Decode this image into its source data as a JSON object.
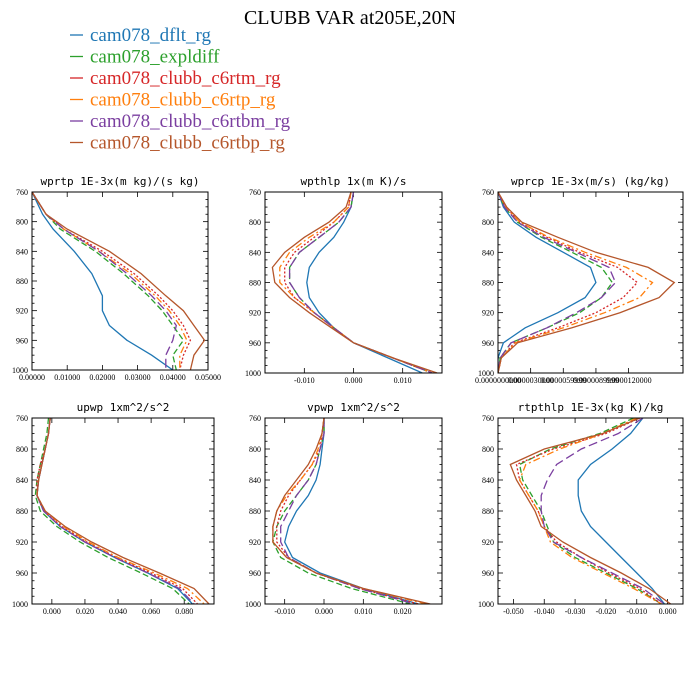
{
  "title": "CLUBB VAR at205E,20N",
  "colors": {
    "cam078_dflt_rg": "#1f77b4",
    "cam078_expldiff": "#2ca02c",
    "cam078_clubb_c6rtm_rg": "#d62728",
    "cam078_clubb_c6rtp_rg": "#ff7f0e",
    "cam078_clubb_c6rtbm_rg": "#7b3fa0",
    "cam078_clubb_c6rtbp_rg": "#b5562b"
  },
  "legend": [
    {
      "name": "cam078_dflt_rg",
      "color": "#1f77b4",
      "dash": "solid"
    },
    {
      "name": "cam078_expldiff",
      "color": "#2ca02c",
      "dash": "dash"
    },
    {
      "name": "cam078_clubb_c6rtm_rg",
      "color": "#d62728",
      "dash": "dot"
    },
    {
      "name": "cam078_clubb_c6rtp_rg",
      "color": "#ff7f0e",
      "dash": "dashdot"
    },
    {
      "name": "cam078_clubb_c6rtbm_rg",
      "color": "#7b3fa0",
      "dash": "longdash"
    },
    {
      "name": "cam078_clubb_c6rtbp_rg",
      "color": "#b5562b",
      "dash": "solid"
    }
  ],
  "chart_data": [
    {
      "type": "line",
      "title": "wprtp  1E-3x(m kg)/(s kg)",
      "y_reversed": true,
      "ylim": [
        760,
        1000
      ],
      "yticks": [
        760,
        800,
        840,
        880,
        920,
        960,
        1000
      ],
      "xlim": [
        0.0,
        0.05
      ],
      "xticks": [
        0.0,
        0.01,
        0.02,
        0.03,
        0.04,
        0.05
      ],
      "xticklabels": [
        "0.00000",
        "0.01000",
        "0.02000",
        "0.03000",
        "0.04000",
        "0.05000"
      ],
      "y": [
        760,
        790,
        810,
        840,
        870,
        900,
        920,
        940,
        960,
        980,
        1000
      ],
      "series": [
        {
          "name": "cam078_dflt_rg",
          "x": [
            0.0,
            0.003,
            0.006,
            0.012,
            0.017,
            0.02,
            0.02,
            0.022,
            0.027,
            0.034,
            0.04
          ]
        },
        {
          "name": "cam078_expldiff",
          "x": [
            0.0,
            0.004,
            0.008,
            0.018,
            0.026,
            0.033,
            0.037,
            0.04,
            0.043,
            0.04,
            0.041
          ]
        },
        {
          "name": "cam078_clubb_c6rtm_rg",
          "x": [
            0.0,
            0.004,
            0.009,
            0.02,
            0.029,
            0.036,
            0.04,
            0.043,
            0.045,
            0.043,
            0.042
          ]
        },
        {
          "name": "cam078_clubb_c6rtp_rg",
          "x": [
            0.0,
            0.004,
            0.009,
            0.019,
            0.028,
            0.035,
            0.039,
            0.042,
            0.044,
            0.042,
            0.042
          ]
        },
        {
          "name": "cam078_clubb_c6rtbm_rg",
          "x": [
            0.0,
            0.004,
            0.009,
            0.019,
            0.027,
            0.034,
            0.038,
            0.041,
            0.04,
            0.038,
            0.038
          ]
        },
        {
          "name": "cam078_clubb_c6rtbp_rg",
          "x": [
            0.0,
            0.004,
            0.01,
            0.022,
            0.031,
            0.038,
            0.043,
            0.046,
            0.049,
            0.046,
            0.045
          ]
        }
      ]
    },
    {
      "type": "line",
      "title": "wpthlp  1x(m K)/s",
      "y_reversed": true,
      "ylim": [
        760,
        1000
      ],
      "yticks": [
        760,
        800,
        840,
        880,
        920,
        960,
        1000
      ],
      "xlim": [
        -0.018,
        0.018
      ],
      "xticks": [
        -0.01,
        0.0,
        0.01
      ],
      "xticklabels": [
        "-0.010",
        "0.000",
        "0.010"
      ],
      "y": [
        760,
        780,
        800,
        820,
        840,
        860,
        880,
        900,
        920,
        940,
        960,
        980,
        1000
      ],
      "series": [
        {
          "name": "cam078_dflt_rg",
          "x": [
            0.0,
            -0.0005,
            -0.002,
            -0.004,
            -0.007,
            -0.009,
            -0.0095,
            -0.009,
            -0.007,
            -0.004,
            0.0,
            0.007,
            0.014
          ]
        },
        {
          "name": "cam078_expldiff",
          "x": [
            0.0,
            -0.0005,
            -0.003,
            -0.007,
            -0.011,
            -0.013,
            -0.013,
            -0.011,
            -0.008,
            -0.004,
            0.0,
            0.008,
            0.016
          ]
        },
        {
          "name": "cam078_clubb_c6rtm_rg",
          "x": [
            -0.0005,
            -0.001,
            -0.004,
            -0.008,
            -0.012,
            -0.014,
            -0.014,
            -0.012,
            -0.008,
            -0.004,
            0.0,
            0.008,
            0.016
          ]
        },
        {
          "name": "cam078_clubb_c6rtp_rg",
          "x": [
            -0.0005,
            -0.001,
            -0.004,
            -0.009,
            -0.013,
            -0.015,
            -0.015,
            -0.012,
            -0.008,
            -0.004,
            0.0,
            0.008,
            0.016
          ]
        },
        {
          "name": "cam078_clubb_c6rtbm_rg",
          "x": [
            0.0,
            -0.0005,
            -0.003,
            -0.007,
            -0.011,
            -0.013,
            -0.013,
            -0.011,
            -0.008,
            -0.004,
            0.0,
            0.008,
            0.016
          ]
        },
        {
          "name": "cam078_clubb_c6rtbp_rg",
          "x": [
            -0.0005,
            -0.0015,
            -0.005,
            -0.01,
            -0.014,
            -0.0165,
            -0.016,
            -0.013,
            -0.009,
            -0.0045,
            0.0,
            0.008,
            0.017
          ]
        }
      ]
    },
    {
      "type": "line",
      "title": "wprcp  1E-3x(m/s) (kg/kg)",
      "y_reversed": true,
      "ylim": [
        760,
        1000
      ],
      "yticks": [
        760,
        800,
        840,
        880,
        920,
        960,
        1000
      ],
      "xlim": [
        0.0,
        1.7e-05
      ],
      "xticks": [
        0.0,
        3e-06,
        6e-06,
        9e-06,
        1.2e-05
      ],
      "xticklabels": [
        "0.0000000000",
        "0.0000030000",
        "0.0000059999",
        "0.0000089999",
        "0.0000120000"
      ],
      "y": [
        760,
        780,
        800,
        820,
        840,
        860,
        880,
        900,
        920,
        940,
        960,
        980,
        1000
      ],
      "series": [
        {
          "name": "cam078_dflt_rg",
          "x": [
            0.0,
            5e-07,
            1.5e-06,
            3.5e-06,
            6e-06,
            8.5e-06,
            9e-06,
            8e-06,
            5.5e-06,
            2.5e-06,
            5e-07,
            0.0,
            0.0
          ]
        },
        {
          "name": "cam078_expldiff",
          "x": [
            0.0,
            6e-07,
            1.8e-06,
            4e-06,
            6.8e-06,
            9.5e-06,
            1.05e-05,
            9.5e-06,
            7.5e-06,
            4.5e-06,
            1.2e-06,
            2e-07,
            0.0
          ]
        },
        {
          "name": "cam078_clubb_c6rtm_rg",
          "x": [
            0.0,
            7e-07,
            2e-06,
            4.5e-06,
            7.5e-06,
            1.1e-05,
            1.28e-05,
            1.15e-05,
            9e-06,
            5.5e-06,
            1.5e-06,
            3e-07,
            0.0
          ]
        },
        {
          "name": "cam078_clubb_c6rtp_rg",
          "x": [
            0.0,
            7e-07,
            2e-06,
            4.7e-06,
            8e-06,
            1.18e-05,
            1.42e-05,
            1.3e-05,
            9.8e-06,
            6e-06,
            1.6e-06,
            3e-07,
            0.0
          ]
        },
        {
          "name": "cam078_clubb_c6rtbm_rg",
          "x": [
            0.0,
            6e-07,
            1.8e-06,
            4.2e-06,
            7.2e-06,
            1.02e-05,
            1.08e-05,
            9.5e-06,
            7.2e-06,
            4.5e-06,
            1.2e-06,
            2e-07,
            0.0
          ]
        },
        {
          "name": "cam078_clubb_c6rtbp_rg",
          "x": [
            0.0,
            8e-07,
            2.2e-06,
            5.5e-06,
            9e-06,
            1.38e-05,
            1.62e-05,
            1.48e-05,
            1.12e-05,
            6.8e-06,
            1.8e-06,
            3e-07,
            0.0
          ]
        }
      ]
    },
    {
      "type": "line",
      "title": "upwp  1xm^2/s^2",
      "y_reversed": true,
      "ylim": [
        760,
        1000
      ],
      "yticks": [
        760,
        800,
        840,
        880,
        920,
        960,
        1000
      ],
      "xlim": [
        -0.012,
        0.098
      ],
      "xticks": [
        0.0,
        0.02,
        0.04,
        0.06,
        0.08
      ],
      "xticklabels": [
        "0.000",
        "0.020",
        "0.040",
        "0.060",
        "0.080"
      ],
      "y": [
        760,
        780,
        800,
        820,
        840,
        860,
        880,
        900,
        920,
        940,
        960,
        980,
        1000
      ],
      "series": [
        {
          "name": "cam078_dflt_rg",
          "x": [
            -0.001,
            -0.002,
            -0.004,
            -0.006,
            -0.008,
            -0.009,
            -0.005,
            0.005,
            0.02,
            0.038,
            0.058,
            0.076,
            0.085
          ]
        },
        {
          "name": "cam078_expldiff",
          "x": [
            -0.002,
            -0.003,
            -0.005,
            -0.007,
            -0.009,
            -0.01,
            -0.007,
            0.003,
            0.017,
            0.034,
            0.054,
            0.073,
            0.083
          ]
        },
        {
          "name": "cam078_clubb_c6rtm_rg",
          "x": [
            -0.001,
            -0.002,
            -0.004,
            -0.007,
            -0.009,
            -0.009,
            -0.005,
            0.006,
            0.021,
            0.039,
            0.06,
            0.079,
            0.088
          ]
        },
        {
          "name": "cam078_clubb_c6rtp_rg",
          "x": [
            -0.001,
            -0.002,
            -0.004,
            -0.006,
            -0.008,
            -0.009,
            -0.004,
            0.007,
            0.022,
            0.04,
            0.062,
            0.082,
            0.092
          ]
        },
        {
          "name": "cam078_clubb_c6rtbm_rg",
          "x": [
            -0.001,
            -0.002,
            -0.004,
            -0.006,
            -0.008,
            -0.009,
            -0.005,
            0.005,
            0.02,
            0.038,
            0.058,
            0.077,
            0.086
          ]
        },
        {
          "name": "cam078_clubb_c6rtbp_rg",
          "x": [
            -0.001,
            -0.002,
            -0.004,
            -0.006,
            -0.008,
            -0.009,
            -0.004,
            0.008,
            0.024,
            0.043,
            0.065,
            0.086,
            0.095
          ]
        }
      ]
    },
    {
      "type": "line",
      "title": "vpwp  1xm^2/s^2",
      "y_reversed": true,
      "ylim": [
        760,
        1000
      ],
      "yticks": [
        760,
        800,
        840,
        880,
        920,
        960,
        1000
      ],
      "xlim": [
        -0.015,
        0.03
      ],
      "xticks": [
        -0.01,
        0.0,
        0.01,
        0.02
      ],
      "xticklabels": [
        "-0.010",
        "0.000",
        "0.010",
        "0.020"
      ],
      "y": [
        760,
        780,
        800,
        820,
        840,
        860,
        880,
        900,
        920,
        940,
        960,
        980,
        1000
      ],
      "series": [
        {
          "name": "cam078_dflt_rg",
          "x": [
            0.0,
            0.0,
            -0.0005,
            -0.001,
            -0.002,
            -0.004,
            -0.007,
            -0.009,
            -0.01,
            -0.008,
            -0.001,
            0.01,
            0.024
          ]
        },
        {
          "name": "cam078_expldiff",
          "x": [
            0.0,
            0.0,
            -0.001,
            -0.002,
            -0.004,
            -0.007,
            -0.01,
            -0.012,
            -0.013,
            -0.011,
            -0.004,
            0.007,
            0.022
          ]
        },
        {
          "name": "cam078_clubb_c6rtm_rg",
          "x": [
            0.0,
            -0.0005,
            -0.001,
            -0.003,
            -0.006,
            -0.009,
            -0.011,
            -0.012,
            -0.012,
            -0.009,
            -0.002,
            0.009,
            0.024
          ]
        },
        {
          "name": "cam078_clubb_c6rtp_rg",
          "x": [
            0.0,
            -0.0005,
            -0.0015,
            -0.003,
            -0.006,
            -0.0095,
            -0.012,
            -0.013,
            -0.013,
            -0.0095,
            -0.002,
            0.01,
            0.026
          ]
        },
        {
          "name": "cam078_clubb_c6rtbm_rg",
          "x": [
            0.0,
            0.0,
            -0.001,
            -0.002,
            -0.004,
            -0.007,
            -0.009,
            -0.011,
            -0.011,
            -0.009,
            -0.002,
            0.009,
            0.023
          ]
        },
        {
          "name": "cam078_clubb_c6rtbp_rg",
          "x": [
            0.0,
            -0.0005,
            -0.002,
            -0.004,
            -0.007,
            -0.01,
            -0.012,
            -0.013,
            -0.013,
            -0.0095,
            -0.002,
            0.01,
            0.027
          ]
        }
      ]
    },
    {
      "type": "line",
      "title": "rtpthlp  1E-3x(kg K)/kg",
      "y_reversed": true,
      "ylim": [
        760,
        1000
      ],
      "yticks": [
        760,
        800,
        840,
        880,
        920,
        960,
        1000
      ],
      "xlim": [
        -0.055,
        0.005
      ],
      "xticks": [
        -0.05,
        -0.04,
        -0.03,
        -0.02,
        -0.01,
        0.0
      ],
      "xticklabels": [
        "-0.050",
        "-0.040",
        "-0.030",
        "-0.020",
        "-0.010",
        "0.000"
      ],
      "y": [
        760,
        780,
        800,
        820,
        840,
        860,
        880,
        900,
        920,
        940,
        960,
        980,
        1000
      ],
      "series": [
        {
          "name": "cam078_dflt_rg",
          "x": [
            -0.008,
            -0.012,
            -0.018,
            -0.025,
            -0.029,
            -0.029,
            -0.028,
            -0.025,
            -0.02,
            -0.015,
            -0.01,
            -0.005,
            -0.001
          ]
        },
        {
          "name": "cam078_expldiff",
          "x": [
            -0.011,
            -0.022,
            -0.038,
            -0.048,
            -0.047,
            -0.044,
            -0.041,
            -0.039,
            -0.037,
            -0.03,
            -0.02,
            -0.01,
            -0.002
          ]
        },
        {
          "name": "cam078_clubb_c6rtm_rg",
          "x": [
            -0.009,
            -0.02,
            -0.037,
            -0.049,
            -0.048,
            -0.045,
            -0.042,
            -0.04,
            -0.036,
            -0.028,
            -0.019,
            -0.009,
            -0.002
          ]
        },
        {
          "name": "cam078_clubb_c6rtp_rg",
          "x": [
            -0.01,
            -0.021,
            -0.035,
            -0.046,
            -0.048,
            -0.045,
            -0.042,
            -0.04,
            -0.038,
            -0.031,
            -0.021,
            -0.011,
            -0.002
          ]
        },
        {
          "name": "cam078_clubb_c6rtbm_rg",
          "x": [
            -0.008,
            -0.016,
            -0.028,
            -0.036,
            -0.039,
            -0.041,
            -0.041,
            -0.04,
            -0.037,
            -0.028,
            -0.018,
            -0.008,
            -0.001
          ]
        },
        {
          "name": "cam078_clubb_c6rtbp_rg",
          "x": [
            -0.009,
            -0.021,
            -0.04,
            -0.051,
            -0.049,
            -0.046,
            -0.043,
            -0.041,
            -0.034,
            -0.025,
            -0.015,
            -0.006,
            0.001
          ]
        }
      ]
    }
  ]
}
